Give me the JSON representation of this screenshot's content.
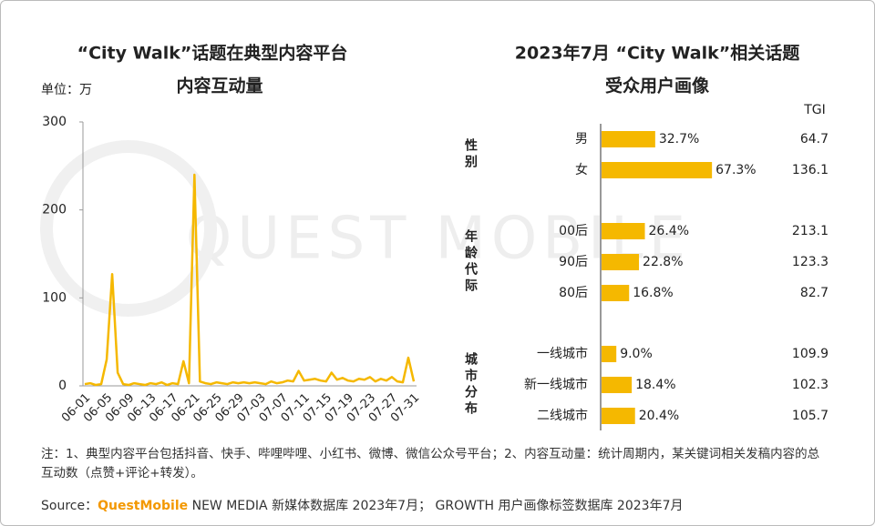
{
  "chart_data": [
    {
      "type": "line",
      "title": [
        "“City Walk”话题在典型内容平台",
        "内容互动量"
      ],
      "unit": "单位：万",
      "categories": [
        "06-01",
        null,
        null,
        null,
        "06-05",
        null,
        null,
        null,
        "06-09",
        null,
        null,
        null,
        "06-13",
        null,
        null,
        null,
        "06-17",
        null,
        null,
        null,
        "06-21",
        null,
        null,
        null,
        "06-25",
        null,
        null,
        null,
        "06-29",
        null,
        null,
        null,
        "07-03",
        null,
        null,
        null,
        "07-07",
        null,
        null,
        null,
        "07-11",
        null,
        null,
        null,
        "07-15",
        null,
        null,
        null,
        "07-19",
        null,
        null,
        null,
        "07-23",
        null,
        null,
        null,
        "07-27",
        null,
        null,
        null,
        "07-31"
      ],
      "values": [
        2,
        3,
        1,
        2,
        30,
        127,
        15,
        2,
        1,
        3,
        2,
        1,
        3,
        2,
        4,
        1,
        3,
        2,
        28,
        3,
        240,
        5,
        3,
        2,
        4,
        3,
        2,
        4,
        3,
        4,
        3,
        4,
        3,
        2,
        5,
        3,
        4,
        6,
        5,
        17,
        6,
        7,
        8,
        6,
        5,
        15,
        7,
        9,
        6,
        5,
        8,
        7,
        10,
        5,
        8,
        6,
        10,
        5,
        4,
        32,
        5
      ],
      "color": "#f5b800",
      "ylim": [
        0,
        300
      ],
      "yticks": [
        0,
        100,
        200,
        300
      ]
    },
    {
      "type": "bar",
      "horizontal": true,
      "title": [
        "2023年7月 “City Walk”相关话题",
        "受众用户画像"
      ],
      "color": "#f5b800",
      "tgi_header": "TGI",
      "groups": [
        {
          "label": "性别",
          "categories": [
            "男",
            "女"
          ],
          "values": [
            32.7,
            67.3
          ],
          "value_labels": [
            "32.7%",
            "67.3%"
          ],
          "tgi": [
            64.7,
            136.1
          ]
        },
        {
          "label": "年龄代际",
          "categories": [
            "00后",
            "90后",
            "80后"
          ],
          "values": [
            26.4,
            22.8,
            16.8
          ],
          "value_labels": [
            "26.4%",
            "22.8%",
            "16.8%"
          ],
          "tgi": [
            213.1,
            123.3,
            82.7
          ]
        },
        {
          "label": "城市分布",
          "categories": [
            "一线城市",
            "新一线城市",
            "二线城市"
          ],
          "values": [
            9.0,
            18.4,
            20.4
          ],
          "value_labels": [
            "9.0%",
            "18.4%",
            "20.4%"
          ],
          "tgi": [
            109.9,
            102.3,
            105.7
          ]
        }
      ]
    }
  ],
  "watermark": "QUEST MOBILE",
  "note": "注：1、典型内容平台包括抖音、快手、哔哩哔哩、小红书、微博、微信公众号平台；2、内容互动量：统计周期内，某关键词相关发稿内容的总互动数（点赞+评论+转发）。",
  "source": {
    "prefix": "Source：",
    "brand": "QuestMobile",
    "text": "NEW MEDIA 新媒体数据库 2023年7月； GROWTH 用户画像标签数据库 2023年7月"
  }
}
